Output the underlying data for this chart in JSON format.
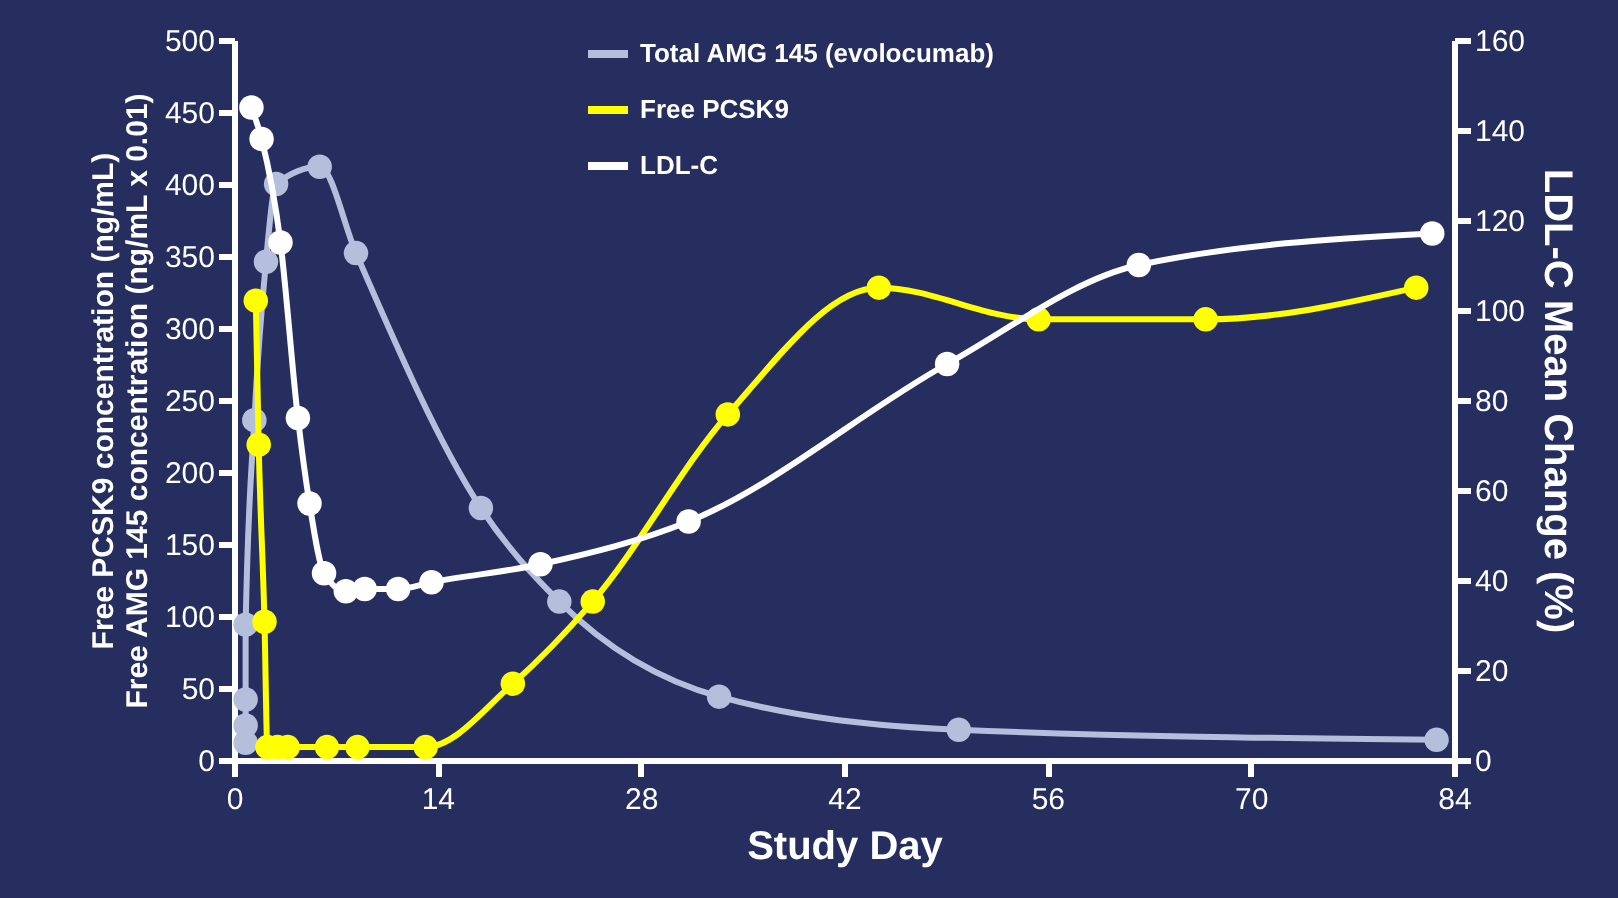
{
  "chart_data": {
    "type": "line",
    "xlabel": "Study Day",
    "ylabel": "Free PCSK9 concentration (ng/mL)\nFree AMG 145 concentration (ng/mL x 0.01)",
    "y2label": "LDL-C Mean Change (%)",
    "xlim": [
      0,
      84
    ],
    "xticks": [
      0,
      14,
      28,
      42,
      56,
      70,
      84
    ],
    "ylim": [
      0,
      500
    ],
    "yticks": [
      0,
      50,
      100,
      150,
      200,
      250,
      300,
      350,
      400,
      450,
      500
    ],
    "y2lim": [
      0,
      160
    ],
    "y2ticks": [
      0,
      20,
      40,
      60,
      80,
      100,
      120,
      140,
      160
    ],
    "grid": false,
    "legend": "top",
    "marker": "circle",
    "line_style": "solid",
    "series": [
      {
        "name": "Total AMG 145 (evolocumab)",
        "color": "#b4bfdc",
        "x": [
          0.8,
          0.8,
          0.8,
          0.8,
          1.4,
          2.2,
          2.9,
          5.9,
          8.4,
          17,
          22.4,
          33.4,
          49.9,
          82.8
        ],
        "values": [
          12,
          24,
          42,
          94,
          236,
          346,
          400,
          412,
          352,
          175,
          110,
          44,
          21,
          14
        ]
      },
      {
        "name": "Free PCSK9",
        "color": "#ffff00",
        "x": [
          1.5,
          1.7,
          2.1,
          2.3,
          3.0,
          3.7,
          6.4,
          8.5,
          13.2,
          19.2,
          24.7,
          34,
          44.4,
          55.4,
          66.9,
          81.4
        ],
        "values": [
          319,
          219,
          96,
          9,
          9,
          9,
          9,
          9,
          9,
          53,
          110,
          240,
          328,
          306,
          306,
          328
        ]
      },
      {
        "name": "LDL-C",
        "color": "#ffffff",
        "axis": "y2",
        "x": [
          1.2,
          1.9,
          3.2,
          4.4,
          5.2,
          6.2,
          7.7,
          9.0,
          11.3,
          13.6,
          21.1,
          31.3,
          49.1,
          62.3,
          82.5
        ],
        "values": [
          145,
          138,
          115,
          76,
          57,
          41.5,
          37.5,
          38,
          38,
          39.5,
          43.5,
          53,
          88,
          110,
          117
        ]
      }
    ]
  }
}
